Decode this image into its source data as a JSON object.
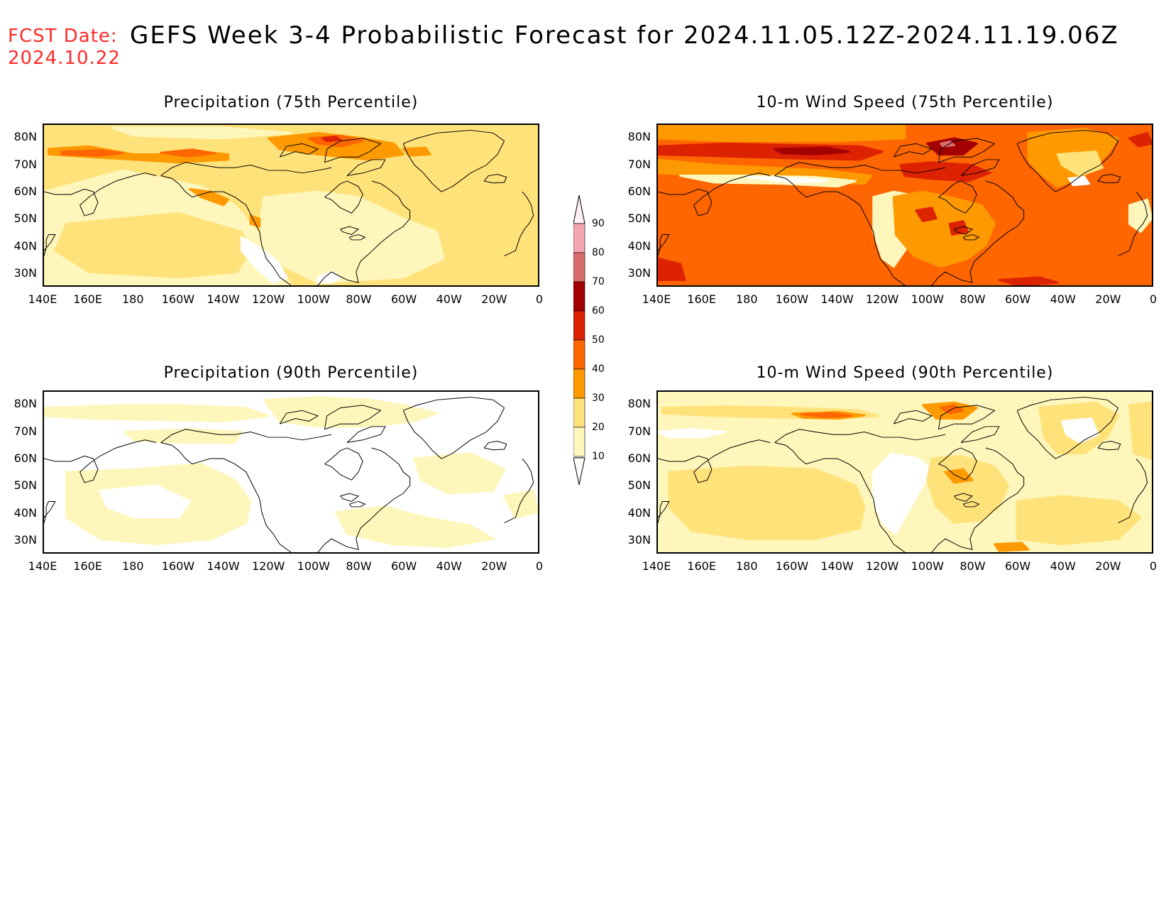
{
  "header": {
    "fcst_label": "FCST Date:",
    "fcst_date": "2024.10.22",
    "title": "GEFS Week 3-4 Probabilistic Forecast for 2024.11.05.12Z-2024.11.19.06Z"
  },
  "panels": [
    {
      "title": "Precipitation (75th Percentile)",
      "field": "precip75"
    },
    {
      "title": "10-m Wind Speed (75th Percentile)",
      "field": "wind75"
    },
    {
      "title": "Precipitation (90th Percentile)",
      "field": "precip90"
    },
    {
      "title": "10-m Wind Speed (90th Percentile)",
      "field": "wind90"
    }
  ],
  "axes": {
    "lat_labels": [
      "80N",
      "70N",
      "60N",
      "50N",
      "40N",
      "30N"
    ],
    "lon_labels": [
      "140E",
      "160E",
      "180",
      "160W",
      "140W",
      "120W",
      "100W",
      "80W",
      "60W",
      "40W",
      "20W",
      "0"
    ]
  },
  "colorbar": {
    "levels": [
      "90",
      "80",
      "70",
      "60",
      "50",
      "40",
      "30",
      "20",
      "10"
    ],
    "colors": [
      "#fde1e6",
      "#f4a5b2",
      "#d96b6b",
      "#a40000",
      "#dd2200",
      "#ff6600",
      "#ff9900",
      "#ffe27a",
      "#fff6bb"
    ]
  },
  "icons": [
    "coastline-outline"
  ]
}
